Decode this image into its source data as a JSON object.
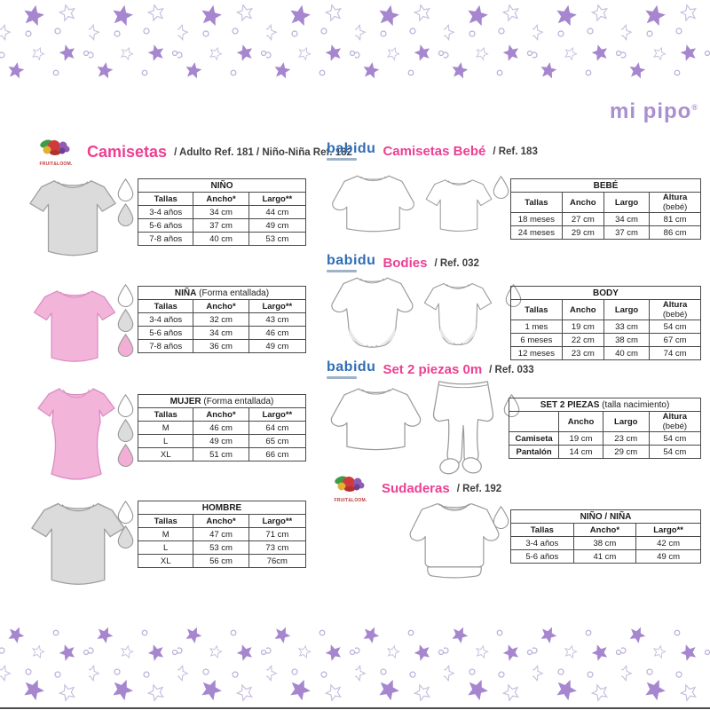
{
  "logos": {
    "mipipo": "mi pipo",
    "mipipo_reg": "®",
    "babidu": "babidu",
    "fotl": "FRUIT&LOOM."
  },
  "colors": {
    "accent_pink": "#ec3f93",
    "brand_purple": "#a98fd0",
    "babidu_blue": "#2f6db5",
    "star_purple": "#a586cf",
    "tee_gray": "#dbdbdb",
    "tee_pink": "#f3b4da",
    "drop_pink": "#f2aed5",
    "drop_gray": "#dcdcdc"
  },
  "sections": {
    "camisetas": {
      "title": "Camisetas",
      "ref": "/ Adulto Ref. 181 / Niño-Niña Ref. 182"
    },
    "camisetas_bebe": {
      "title": "Camisetas Bebé",
      "ref": "/ Ref. 183"
    },
    "bodies": {
      "title": "Bodies",
      "ref": "/ Ref. 032"
    },
    "set_2_piezas": {
      "title": "Set 2 piezas 0m",
      "ref": "/ Ref. 033"
    },
    "sudaderas": {
      "title": "Sudaderas",
      "ref": "/ Ref. 192"
    }
  },
  "tables": {
    "nino": {
      "title": "NIÑO",
      "note": "",
      "cols": [
        "Tallas",
        "Ancho*",
        "Largo**"
      ],
      "widths": [
        33,
        33,
        34
      ],
      "rows": [
        [
          "3-4 años",
          "34 cm",
          "44 cm"
        ],
        [
          "5-6 años",
          "37 cm",
          "49 cm"
        ],
        [
          "7-8 años",
          "40 cm",
          "53 cm"
        ]
      ]
    },
    "nina": {
      "title": "NIÑA",
      "note": "(Forma entallada)",
      "cols": [
        "Tallas",
        "Ancho*",
        "Largo**"
      ],
      "widths": [
        33,
        33,
        34
      ],
      "rows": [
        [
          "3-4 años",
          "32 cm",
          "43 cm"
        ],
        [
          "5-6 años",
          "34 cm",
          "46 cm"
        ],
        [
          "7-8 años",
          "36 cm",
          "49 cm"
        ]
      ]
    },
    "mujer": {
      "title": "MUJER",
      "note": "(Forma entallada)",
      "cols": [
        "Tallas",
        "Ancho*",
        "Largo**"
      ],
      "widths": [
        33,
        33,
        34
      ],
      "rows": [
        [
          "M",
          "46 cm",
          "64 cm"
        ],
        [
          "L",
          "49 cm",
          "65 cm"
        ],
        [
          "XL",
          "51 cm",
          "66 cm"
        ]
      ]
    },
    "hombre": {
      "title": "HOMBRE",
      "note": "",
      "cols": [
        "Tallas",
        "Ancho*",
        "Largo**"
      ],
      "widths": [
        33,
        33,
        34
      ],
      "rows": [
        [
          "M",
          "47 cm",
          "71 cm"
        ],
        [
          "L",
          "53 cm",
          "73 cm"
        ],
        [
          "XL",
          "56 cm",
          "76cm"
        ]
      ]
    },
    "bebe": {
      "title": "BEBÉ",
      "note": "",
      "cols": [
        "Tallas",
        "Ancho",
        "Largo",
        "Altura (bebé)"
      ],
      "widths": [
        27,
        22,
        24,
        27
      ],
      "rows": [
        [
          "18 meses",
          "27 cm",
          "34 cm",
          "81 cm"
        ],
        [
          "24 meses",
          "29 cm",
          "37 cm",
          "86 cm"
        ]
      ]
    },
    "body": {
      "title": "BODY",
      "note": "",
      "cols": [
        "Tallas",
        "Ancho",
        "Largo",
        "Altura (bebé)"
      ],
      "widths": [
        27,
        22,
        24,
        27
      ],
      "rows": [
        [
          "1 mes",
          "19 cm",
          "33 cm",
          "54 cm"
        ],
        [
          "6 meses",
          "22 cm",
          "38 cm",
          "67 cm"
        ],
        [
          "12 meses",
          "23 cm",
          "40 cm",
          "74 cm"
        ]
      ]
    },
    "set2": {
      "title": "SET 2 PIEZAS",
      "note": "(talla nacimiento)",
      "bold_first": true,
      "cols": [
        "",
        "Ancho",
        "Largo",
        "Altura (bebé)"
      ],
      "widths": [
        26,
        23,
        24,
        27
      ],
      "rows": [
        [
          "Camiseta",
          "19 cm",
          "23 cm",
          "54 cm"
        ],
        [
          "Pantalón",
          "14 cm",
          "29 cm",
          "54 cm"
        ]
      ]
    },
    "sudadera": {
      "title": "NIÑO / NIÑA",
      "note": "",
      "cols": [
        "Tallas",
        "Ancho*",
        "Largo**"
      ],
      "widths": [
        33,
        33,
        34
      ],
      "rows": [
        [
          "3-4 años",
          "38 cm",
          "42 cm"
        ],
        [
          "5-6 años",
          "41 cm",
          "49 cm"
        ]
      ]
    }
  },
  "drops": {
    "nino": [
      "white",
      "gray"
    ],
    "nina": [
      "white",
      "gray",
      "pink"
    ],
    "mujer": [
      "white",
      "gray",
      "pink"
    ],
    "hombre": [
      "white",
      "gray"
    ],
    "bebe": [
      "white"
    ],
    "body": [
      "white"
    ],
    "set2": [
      "white"
    ],
    "sudadera": [
      "white"
    ]
  }
}
